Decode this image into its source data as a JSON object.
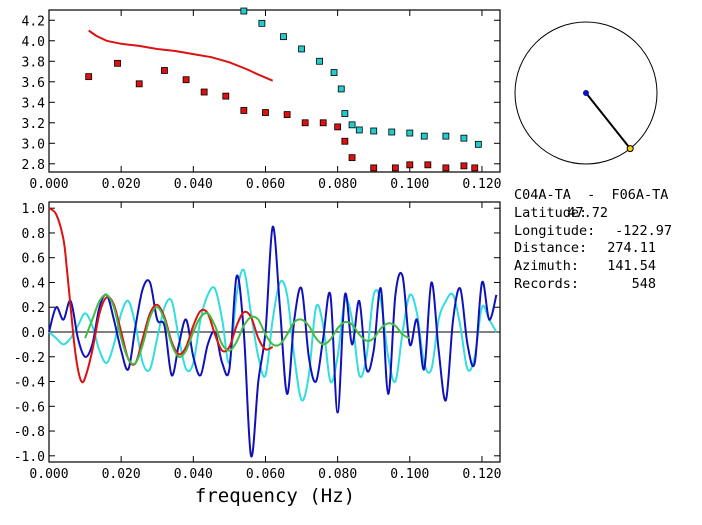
{
  "top_chart": {
    "type": "scatter",
    "x_ticks": [
      "0.000",
      "0.020",
      "0.040",
      "0.060",
      "0.080",
      "0.100",
      "0.120"
    ],
    "y_ticks": [
      "2.8",
      "3.0",
      "3.2",
      "3.4",
      "3.6",
      "3.8",
      "4.0",
      "4.2"
    ],
    "xlim": [
      0.0,
      0.125
    ],
    "ylim": [
      2.72,
      4.3
    ],
    "colors": {
      "red": "#dd1111",
      "cyan": "#22cccc"
    },
    "red_squares": {
      "x": [
        0.011,
        0.019,
        0.025,
        0.032,
        0.038,
        0.043,
        0.049,
        0.054,
        0.06,
        0.066,
        0.071,
        0.076,
        0.08,
        0.082,
        0.084,
        0.09,
        0.096,
        0.1,
        0.105,
        0.11,
        0.115,
        0.118
      ],
      "y": [
        3.65,
        3.78,
        3.58,
        3.71,
        3.62,
        3.5,
        3.46,
        3.32,
        3.3,
        3.28,
        3.2,
        3.2,
        3.16,
        3.02,
        2.86,
        2.76,
        2.76,
        2.79,
        2.79,
        2.76,
        2.78,
        2.76
      ]
    },
    "cyan_squares": {
      "x": [
        0.054,
        0.059,
        0.065,
        0.07,
        0.075,
        0.079,
        0.081,
        0.082,
        0.084,
        0.086,
        0.09,
        0.095,
        0.1,
        0.104,
        0.11,
        0.115,
        0.119
      ],
      "y": [
        4.29,
        4.17,
        4.04,
        3.92,
        3.8,
        3.69,
        3.53,
        3.29,
        3.18,
        3.13,
        3.12,
        3.11,
        3.1,
        3.07,
        3.07,
        3.05,
        2.99
      ]
    },
    "red_curve": {
      "x": [
        0.011,
        0.013,
        0.016,
        0.02,
        0.025,
        0.03,
        0.035,
        0.04,
        0.045,
        0.05,
        0.055,
        0.058,
        0.062
      ],
      "y": [
        4.1,
        4.05,
        4.0,
        3.97,
        3.95,
        3.92,
        3.9,
        3.87,
        3.84,
        3.79,
        3.72,
        3.67,
        3.61
      ]
    }
  },
  "bottom_chart": {
    "type": "line",
    "x_ticks": [
      "0.000",
      "0.020",
      "0.040",
      "0.060",
      "0.080",
      "0.100",
      "0.120"
    ],
    "y_ticks": [
      "1.0",
      "0.8",
      "0.6",
      "0.4",
      "0.2",
      "0.0",
      "-0.2",
      "-0.4",
      "-0.6",
      "-0.8",
      "-1.0"
    ],
    "xlim": [
      0.0,
      0.125
    ],
    "ylim": [
      -1.05,
      1.05
    ],
    "xlabel": "frequency (Hz)",
    "colors": {
      "blue": "#1111bb",
      "cyan": "#33dddd",
      "red": "#dd1111",
      "green": "#44bb44"
    },
    "series": [
      {
        "color": "cyan",
        "x": [
          0.0,
          0.002,
          0.004,
          0.006,
          0.008,
          0.01,
          0.012,
          0.014,
          0.016,
          0.018,
          0.02,
          0.022,
          0.024,
          0.026,
          0.028,
          0.03,
          0.032,
          0.034,
          0.036,
          0.038,
          0.04,
          0.042,
          0.044,
          0.046,
          0.048,
          0.05,
          0.052,
          0.054,
          0.056,
          0.058,
          0.06,
          0.062,
          0.064,
          0.066,
          0.068,
          0.07,
          0.072,
          0.074,
          0.076,
          0.078,
          0.08,
          0.082,
          0.084,
          0.086,
          0.088,
          0.09,
          0.092,
          0.094,
          0.096,
          0.098,
          0.1,
          0.102,
          0.104,
          0.106,
          0.108,
          0.11,
          0.112,
          0.114,
          0.116,
          0.118,
          0.12,
          0.122,
          0.124
        ],
        "y": [
          0.0,
          -0.05,
          -0.1,
          -0.05,
          0.05,
          0.15,
          0.05,
          -0.15,
          -0.25,
          -0.1,
          0.15,
          0.25,
          0.05,
          -0.25,
          -0.3,
          -0.05,
          0.2,
          0.25,
          -0.05,
          -0.3,
          -0.25,
          0.1,
          0.3,
          0.35,
          0.1,
          -0.25,
          0.3,
          0.5,
          0.15,
          -0.2,
          -0.35,
          0.1,
          0.4,
          0.3,
          -0.2,
          -0.55,
          -0.35,
          0.2,
          0.05,
          -0.4,
          -0.2,
          0.25,
          0.1,
          -0.35,
          -0.2,
          0.3,
          0.25,
          -0.2,
          -0.4,
          0.0,
          0.3,
          0.15,
          -0.25,
          -0.3,
          0.1,
          0.25,
          0.3,
          0.05,
          -0.3,
          -0.2,
          0.2,
          0.1,
          0.0
        ]
      },
      {
        "color": "blue",
        "x": [
          0.0,
          0.002,
          0.004,
          0.006,
          0.008,
          0.01,
          0.012,
          0.014,
          0.016,
          0.018,
          0.02,
          0.022,
          0.024,
          0.026,
          0.028,
          0.03,
          0.032,
          0.034,
          0.036,
          0.038,
          0.04,
          0.042,
          0.044,
          0.046,
          0.048,
          0.05,
          0.052,
          0.054,
          0.056,
          0.058,
          0.06,
          0.062,
          0.064,
          0.066,
          0.068,
          0.07,
          0.072,
          0.074,
          0.076,
          0.078,
          0.08,
          0.082,
          0.084,
          0.086,
          0.088,
          0.09,
          0.092,
          0.094,
          0.096,
          0.098,
          0.1,
          0.102,
          0.104,
          0.106,
          0.108,
          0.11,
          0.112,
          0.114,
          0.116,
          0.118,
          0.12,
          0.122,
          0.124
        ],
        "y": [
          0.0,
          0.2,
          0.1,
          0.25,
          -0.05,
          -0.2,
          -0.1,
          0.2,
          0.3,
          0.1,
          -0.15,
          -0.3,
          0.05,
          0.35,
          0.4,
          0.1,
          0.05,
          -0.35,
          -0.1,
          0.1,
          -0.2,
          -0.35,
          -0.1,
          0.0,
          -0.25,
          -0.3,
          0.45,
          0.0,
          -1.0,
          -0.4,
          0.0,
          0.85,
          0.2,
          -0.5,
          0.1,
          0.35,
          -0.2,
          -0.4,
          -0.05,
          0.3,
          -0.65,
          0.3,
          -0.1,
          0.25,
          -0.3,
          -0.15,
          0.35,
          -0.5,
          0.3,
          0.45,
          -0.1,
          0.1,
          -0.3,
          0.4,
          -0.15,
          -0.55,
          0.1,
          0.35,
          -0.1,
          -0.25,
          0.4,
          0.1,
          0.3
        ]
      },
      {
        "color": "red",
        "x": [
          0.0,
          0.002,
          0.004,
          0.005,
          0.006,
          0.007,
          0.008,
          0.009,
          0.01,
          0.012,
          0.014,
          0.016,
          0.018,
          0.02,
          0.022,
          0.024,
          0.026,
          0.028,
          0.03,
          0.032,
          0.034,
          0.036,
          0.038,
          0.04,
          0.042,
          0.044,
          0.046,
          0.048,
          0.05,
          0.052,
          0.054,
          0.056,
          0.058,
          0.06,
          0.062
        ],
        "y": [
          1.0,
          0.95,
          0.75,
          0.5,
          0.2,
          -0.1,
          -0.3,
          -0.4,
          -0.37,
          -0.15,
          0.15,
          0.28,
          0.22,
          0.0,
          -0.22,
          -0.25,
          -0.05,
          0.15,
          0.22,
          0.12,
          -0.08,
          -0.18,
          -0.12,
          0.05,
          0.17,
          0.15,
          -0.02,
          -0.15,
          -0.12,
          0.05,
          0.16,
          0.12,
          -0.05,
          -0.14,
          -0.12
        ]
      },
      {
        "color": "green",
        "x": [
          0.01,
          0.012,
          0.014,
          0.016,
          0.018,
          0.02,
          0.022,
          0.024,
          0.026,
          0.028,
          0.03,
          0.032,
          0.034,
          0.036,
          0.038,
          0.04,
          0.042,
          0.044,
          0.046,
          0.048,
          0.05,
          0.052,
          0.054,
          0.056,
          0.058,
          0.06,
          0.062,
          0.064,
          0.066,
          0.068,
          0.07,
          0.072,
          0.074,
          0.076,
          0.078,
          0.08,
          0.082,
          0.084,
          0.086,
          0.088,
          0.09,
          0.092,
          0.094,
          0.096,
          0.098,
          0.1
        ],
        "y": [
          -0.05,
          0.1,
          0.25,
          0.3,
          0.2,
          -0.05,
          -0.22,
          -0.25,
          -0.1,
          0.12,
          0.2,
          0.1,
          -0.1,
          -0.2,
          -0.15,
          0.0,
          0.12,
          0.15,
          0.05,
          -0.1,
          -0.15,
          -0.08,
          0.05,
          0.12,
          0.1,
          -0.02,
          -0.1,
          -0.1,
          -0.02,
          0.08,
          0.1,
          0.05,
          -0.05,
          -0.1,
          -0.06,
          0.03,
          0.08,
          0.06,
          -0.02,
          -0.07,
          -0.05,
          0.03,
          0.07,
          0.05,
          -0.02,
          -0.05
        ]
      }
    ]
  },
  "azimuth_dial": {
    "azimuth_deg": 141.54,
    "colors": {
      "center": "#1111bb",
      "line": "#000000",
      "endpoint": "#ffcc00"
    }
  },
  "info": {
    "title": "C04A-TA  -  F06A-TA",
    "rows": [
      {
        "label": "Latitude:",
        "value": "47.72"
      },
      {
        "label": "Longitude:",
        "value": "-122.97"
      },
      {
        "label": "Distance:",
        "value": "274.11"
      },
      {
        "label": "Azimuth:",
        "value": "141.54"
      },
      {
        "label": "Records:",
        "value": "548"
      }
    ]
  }
}
